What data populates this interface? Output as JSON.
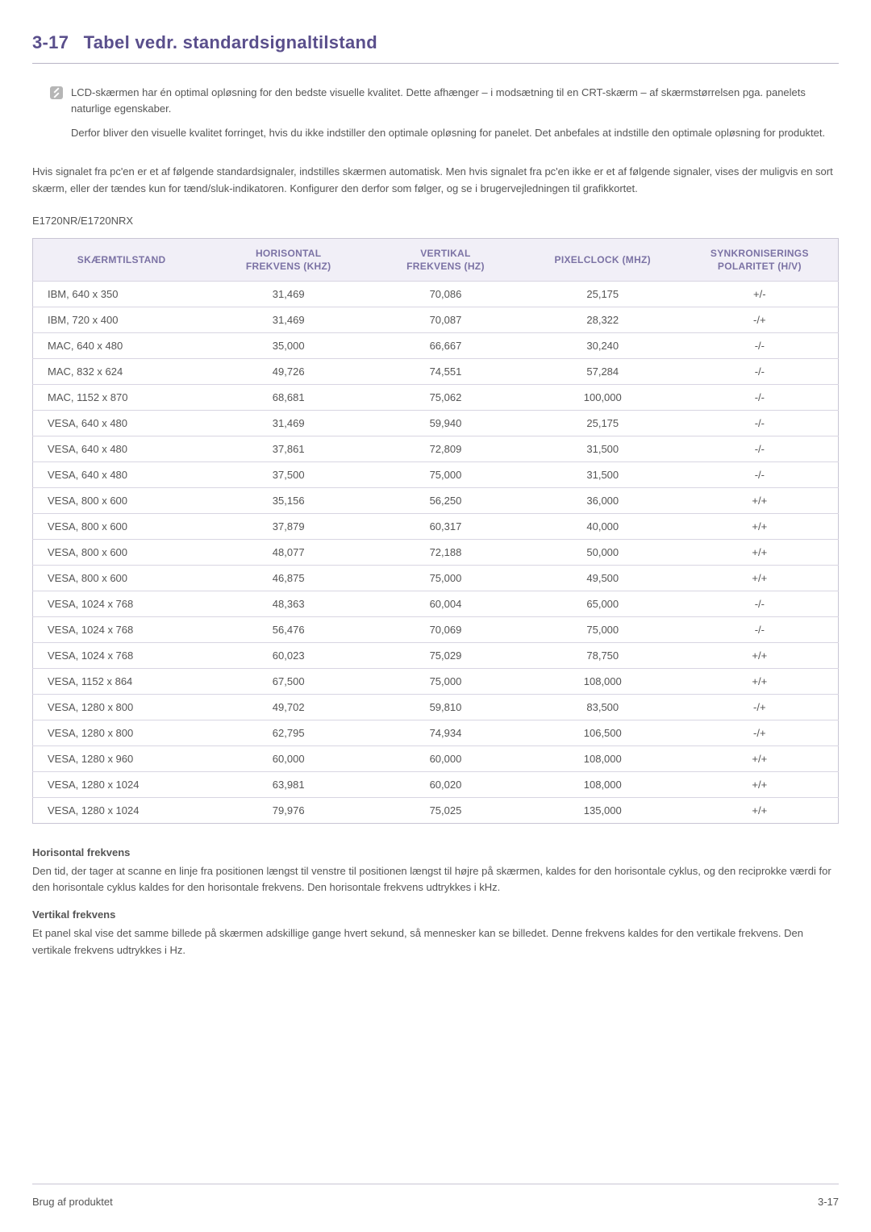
{
  "colors": {
    "heading": "#5a4f8c",
    "table_header_bg": "#f1eff7",
    "table_header_text": "#7b72a4",
    "border": "#c8c5d4",
    "row_border": "#d8d5e2",
    "body_text": "#555555",
    "icon_bg": "#b6b6b6"
  },
  "section": {
    "number": "3-17",
    "title": "Tabel vedr. standardsignaltilstand"
  },
  "note": {
    "p1": "LCD-skærmen har én optimal opløsning for den bedste visuelle kvalitet. Dette afhænger – i modsætning til en CRT-skærm – af skærmstørrelsen pga. panelets naturlige egenskaber.",
    "p2": "Derfor bliver den visuelle kvalitet forringet, hvis du ikke indstiller den optimale opløsning for panelet. Det anbefales at indstille den optimale opløsning for produktet."
  },
  "intro": "Hvis signalet fra pc'en er et af følgende standardsignaler, indstilles skærmen automatisk. Men hvis signalet fra pc'en ikke er et af følgende signaler, vises der muligvis en sort skærm, eller der tændes kun for tænd/sluk-indikatoren. Konfigurer den derfor som følger, og se i brugervejledningen til grafikkortet.",
  "model": "E1720NR/E1720NRX",
  "table": {
    "type": "table",
    "columns": [
      "SKÆRMTILSTAND",
      "HORISONTAL FREKVENS (KHZ)",
      "VERTIKAL FREKVENS (HZ)",
      "PIXELCLOCK (MHZ)",
      "SYNKRONISERINGS POLARITET (H/V)"
    ],
    "col_widths": [
      "22%",
      "19.5%",
      "19.5%",
      "19.5%",
      "19.5%"
    ],
    "header_fontsize": 12,
    "cell_fontsize": 13,
    "rows": [
      [
        "IBM, 640 x 350",
        "31,469",
        "70,086",
        "25,175",
        "+/-"
      ],
      [
        "IBM, 720 x 400",
        "31,469",
        "70,087",
        "28,322",
        "-/+"
      ],
      [
        "MAC, 640 x 480",
        "35,000",
        "66,667",
        "30,240",
        "-/-"
      ],
      [
        "MAC, 832 x 624",
        "49,726",
        "74,551",
        "57,284",
        "-/-"
      ],
      [
        "MAC, 1152 x 870",
        "68,681",
        "75,062",
        "100,000",
        "-/-"
      ],
      [
        "VESA, 640 x 480",
        "31,469",
        "59,940",
        "25,175",
        "-/-"
      ],
      [
        "VESA, 640 x 480",
        "37,861",
        "72,809",
        "31,500",
        "-/-"
      ],
      [
        "VESA, 640 x 480",
        "37,500",
        "75,000",
        "31,500",
        "-/-"
      ],
      [
        "VESA, 800 x 600",
        "35,156",
        "56,250",
        "36,000",
        "+/+"
      ],
      [
        "VESA, 800 x 600",
        "37,879",
        "60,317",
        "40,000",
        "+/+"
      ],
      [
        "VESA, 800 x 600",
        "48,077",
        "72,188",
        "50,000",
        "+/+"
      ],
      [
        "VESA, 800 x 600",
        "46,875",
        "75,000",
        "49,500",
        "+/+"
      ],
      [
        "VESA, 1024 x 768",
        "48,363",
        "60,004",
        "65,000",
        "-/-"
      ],
      [
        "VESA, 1024 x 768",
        "56,476",
        "70,069",
        "75,000",
        "-/-"
      ],
      [
        "VESA, 1024 x 768",
        "60,023",
        "75,029",
        "78,750",
        "+/+"
      ],
      [
        "VESA, 1152 x 864",
        "67,500",
        "75,000",
        "108,000",
        "+/+"
      ],
      [
        "VESA, 1280 x 800",
        "49,702",
        "59,810",
        "83,500",
        "-/+"
      ],
      [
        "VESA, 1280 x 800",
        "62,795",
        "74,934",
        "106,500",
        "-/+"
      ],
      [
        "VESA, 1280 x 960",
        "60,000",
        "60,000",
        "108,000",
        "+/+"
      ],
      [
        "VESA, 1280 x 1024",
        "63,981",
        "60,020",
        "108,000",
        "+/+"
      ],
      [
        "VESA, 1280 x 1024",
        "79,976",
        "75,025",
        "135,000",
        "+/+"
      ]
    ]
  },
  "defs": {
    "h_title": "Horisontal frekvens",
    "h_body": "Den tid, der tager at scanne en linje fra positionen længst til venstre til positionen længst til højre på skærmen, kaldes for den horisontale cyklus, og den reciprokke værdi for den horisontale cyklus kaldes for den horisontale frekvens. Den horisontale frekvens udtrykkes i kHz.",
    "v_title": "Vertikal frekvens",
    "v_body": "Et panel skal vise det samme billede på skærmen adskillige gange hvert sekund, så mennesker kan se billedet. Denne frekvens kaldes for den vertikale frekvens. Den vertikale frekvens udtrykkes i Hz."
  },
  "footer": {
    "left": "Brug af produktet",
    "right": "3-17"
  }
}
